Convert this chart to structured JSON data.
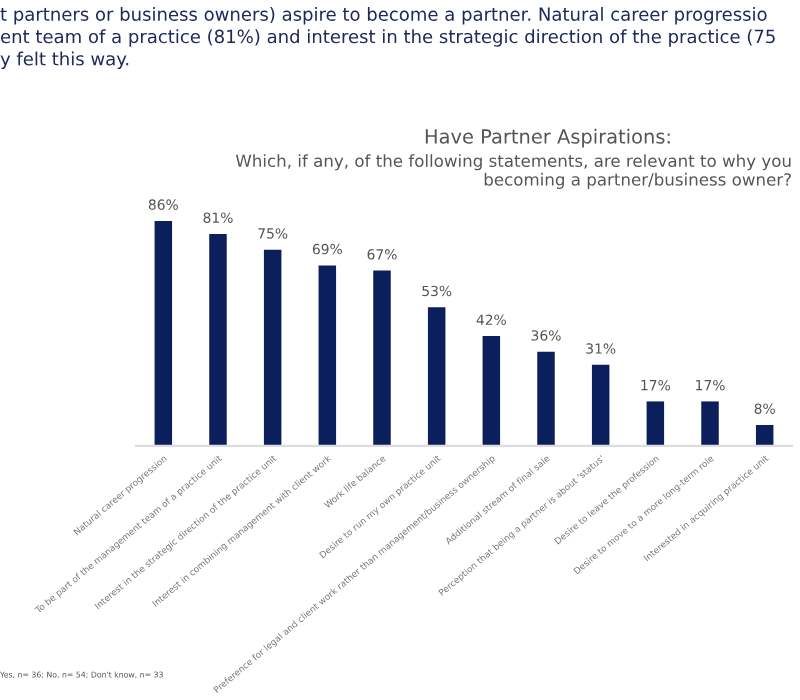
{
  "chart_data": {
    "type": "bar",
    "title": "Have Partner Aspirations:",
    "subtitle": "Which, if any, of the following statements, are relevant to why you\nbecoming a partner/business owner?",
    "annotations": [
      "t partners or business owners) aspire to become a partner. Natural career progressio\nent team of a practice (81%) and interest in the strategic direction of the practice (75\ny felt this way.",
      "Yes, n= 36; No, n= 54; Don't know, n= 33"
    ],
    "categories": [
      "Natural career progression",
      "To be part of the management team of a practice unit",
      "Interest in the strategic direction of the practice unit",
      "Interest in combining management with client work",
      "Work life balance",
      "Desire to run my own practice unit",
      "Preference for legal and client work rather than management/business ownership",
      "Additional stream of final sale",
      "Perception that being a partner is about 'status'",
      "Desire to leave the profession",
      "Desire to move to a more long-term role",
      "Interested in acquiring practice unit"
    ],
    "values": [
      86,
      81,
      75,
      69,
      67,
      53,
      42,
      36,
      31,
      17,
      17,
      8
    ],
    "color": "#0b1f5c",
    "value_labels": [
      "86%",
      "81%",
      "75%",
      "69%",
      "67%",
      "53%",
      "42%",
      "36%",
      "31%",
      "17%",
      "17%",
      "8%"
    ]
  }
}
